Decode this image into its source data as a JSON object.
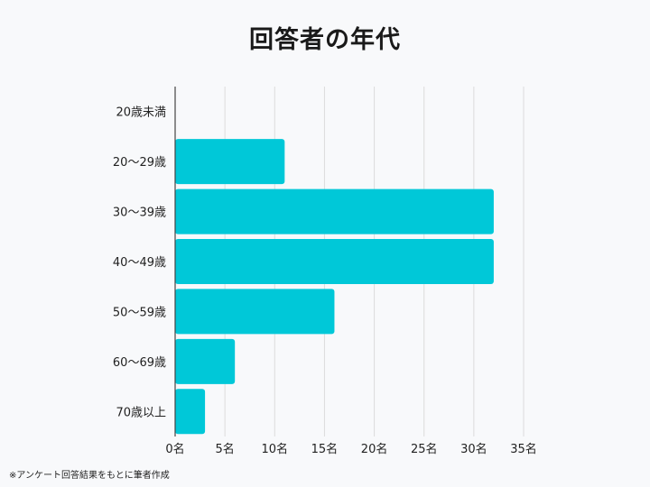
{
  "chart_data": {
    "type": "bar",
    "orientation": "horizontal",
    "title": "回答者の年代",
    "categories": [
      "20歳未満",
      "20～29歳",
      "30～39歳",
      "40～49歳",
      "50～59歳",
      "60～69歳",
      "70歳以上"
    ],
    "values": [
      0,
      11,
      32,
      32,
      16,
      6,
      3
    ],
    "x_ticks": [
      "0名",
      "5名",
      "10名",
      "15名",
      "20名",
      "25名",
      "30名",
      "35名"
    ],
    "xlim": [
      0,
      35
    ],
    "grid": true,
    "bar_color": "#00c8d8",
    "grid_color": "#dcdcdc",
    "axis_color": "#444444"
  },
  "footnote": "※アンケート回答結果をもとに筆者作成"
}
